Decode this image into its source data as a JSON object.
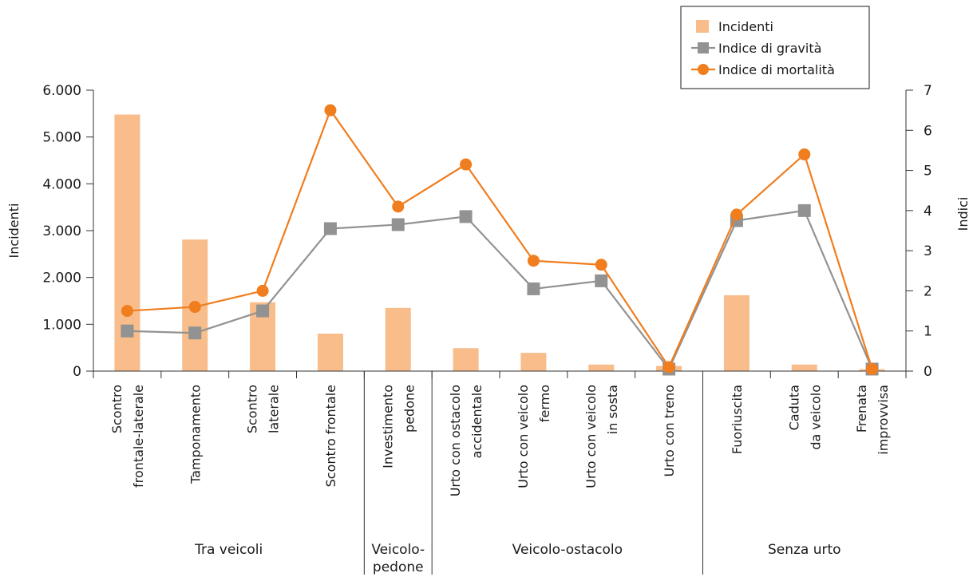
{
  "chart_data": {
    "type": "bar",
    "categories": [
      [
        "Scontro",
        "frontale-laterale"
      ],
      [
        "Tamponamento"
      ],
      [
        "Scontro",
        "laterale"
      ],
      [
        "Scontro frontale"
      ],
      [
        "Investimento",
        "pedone"
      ],
      [
        "Urto con ostacolo",
        "accidentale"
      ],
      [
        "Urto con veicolo",
        "fermo"
      ],
      [
        "Urto con veicolo",
        "in sosta"
      ],
      [
        "Urto con treno"
      ],
      [
        "Fuoriuscita"
      ],
      [
        "Caduta",
        "da veicolo"
      ],
      [
        "Frenata",
        "improvvisa"
      ]
    ],
    "groups": [
      {
        "label": [
          "Tra veicoli"
        ],
        "start": 0,
        "end": 3
      },
      {
        "label": [
          "Veicolo-",
          "pedone"
        ],
        "start": 4,
        "end": 4
      },
      {
        "label": [
          "Veicolo-ostacolo"
        ],
        "start": 5,
        "end": 8
      },
      {
        "label": [
          "Senza urto"
        ],
        "start": 9,
        "end": 11
      }
    ],
    "series": [
      {
        "name": "Incidenti",
        "type": "bar",
        "axis": "left",
        "color": "#f8bd8a",
        "values": [
          5480,
          2810,
          1470,
          800,
          1350,
          490,
          390,
          140,
          110,
          1620,
          140,
          40
        ]
      },
      {
        "name": "Indice di gravità",
        "type": "line",
        "axis": "right",
        "color": "#929292",
        "marker": "square",
        "values": [
          1.0,
          0.95,
          1.5,
          3.55,
          3.65,
          3.85,
          2.05,
          2.25,
          0.05,
          3.75,
          4.0,
          0.05
        ]
      },
      {
        "name": "Indice di mortalità",
        "type": "line",
        "axis": "right",
        "color": "#f07d1e",
        "marker": "circle",
        "values": [
          1.5,
          1.6,
          2.0,
          6.5,
          4.1,
          5.15,
          2.75,
          2.65,
          0.1,
          3.9,
          5.4,
          0.05
        ]
      }
    ],
    "left_axis": {
      "label": "Incidenti",
      "min": 0,
      "max": 6000,
      "ticks": [
        {
          "v": 0,
          "t": "0"
        },
        {
          "v": 1000,
          "t": "1.000"
        },
        {
          "v": 2000,
          "t": "2.000"
        },
        {
          "v": 3000,
          "t": "3.000"
        },
        {
          "v": 4000,
          "t": "4.000"
        },
        {
          "v": 5000,
          "t": "5.000"
        },
        {
          "v": 6000,
          "t": "6.000"
        }
      ]
    },
    "right_axis": {
      "label": "Indici",
      "min": 0,
      "max": 7,
      "ticks": [
        {
          "v": 0,
          "t": "0"
        },
        {
          "v": 1,
          "t": "1"
        },
        {
          "v": 2,
          "t": "2"
        },
        {
          "v": 3,
          "t": "3"
        },
        {
          "v": 4,
          "t": "4"
        },
        {
          "v": 5,
          "t": "5"
        },
        {
          "v": 6,
          "t": "6"
        },
        {
          "v": 7,
          "t": "7"
        }
      ]
    },
    "grid": false,
    "legend_position": "top-right"
  }
}
